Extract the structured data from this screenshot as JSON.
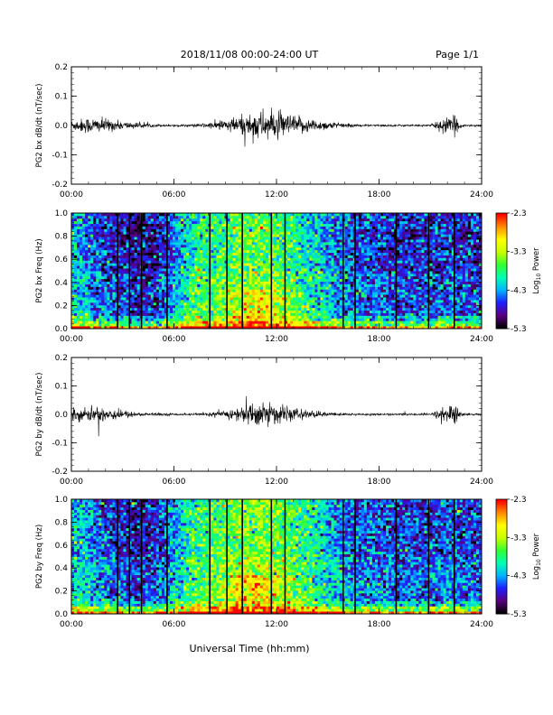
{
  "header": {
    "date_range": "2018/11/08  00:00-24:00 UT",
    "page": "Page 1/1"
  },
  "footer": {
    "xlabel": "Universal Time (hh:mm)"
  },
  "chart_data": [
    {
      "type": "line",
      "title": "",
      "ylabel": "PG2 bx dB/dt (nT/sec)",
      "xlabel": "",
      "xlim": [
        "00:00",
        "24:00"
      ],
      "x_ticks": [
        "00:00",
        "06:00",
        "12:00",
        "18:00",
        "24:00"
      ],
      "ylim": [
        -0.2,
        0.2
      ],
      "y_ticks": [
        "-0.2",
        "-0.1",
        "0.0",
        "0.1",
        "0.2"
      ],
      "grid": false,
      "series": [
        {
          "color": "#000000",
          "amplitude_envelope_hours": [
            0,
            1,
            2,
            3,
            4,
            5,
            6,
            7,
            8,
            9,
            10,
            11,
            12,
            13,
            14,
            15,
            16,
            17,
            18,
            19,
            20,
            21,
            22,
            23,
            24
          ],
          "amplitude_envelope_nT_per_s": [
            0.015,
            0.025,
            0.02,
            0.012,
            0.008,
            0.004,
            0.003,
            0.003,
            0.008,
            0.018,
            0.03,
            0.045,
            0.04,
            0.03,
            0.02,
            0.012,
            0.006,
            0.003,
            0.003,
            0.003,
            0.003,
            0.003,
            0.025,
            0.003,
            0.003
          ]
        }
      ]
    },
    {
      "type": "heatmap",
      "title": "",
      "ylabel": "PG2 bx Freq (Hz)",
      "xlim": [
        "00:00",
        "24:00"
      ],
      "x_ticks": [
        "00:00",
        "06:00",
        "12:00",
        "18:00",
        "24:00"
      ],
      "ylim": [
        0.0,
        1.0
      ],
      "y_ticks": [
        "0.0",
        "0.2",
        "0.4",
        "0.6",
        "0.8",
        "1.0"
      ],
      "colorbar": {
        "label": "Log10 Power",
        "label_main": "Log",
        "label_sub": "10",
        "label_tail": " Power",
        "range": [
          -5.3,
          -2.3
        ],
        "ticks": [
          "-2.3",
          "-3.3",
          "-4.3",
          "-5.3"
        ],
        "colormap": [
          "#000000",
          "#5a007f",
          "#1e1eff",
          "#00b4ff",
          "#00ffb4",
          "#32ff32",
          "#c8ff00",
          "#ffff00",
          "#ff8c00",
          "#ff0000"
        ]
      },
      "data_gap_hours": [
        2.7,
        3.4,
        4.1,
        5.6,
        8.1,
        9.1,
        10.0,
        11.7,
        12.5,
        15.9,
        16.6,
        19.0,
        20.9,
        22.4
      ],
      "time_hours": [
        0,
        1,
        2,
        3,
        4,
        5,
        6,
        7,
        8,
        9,
        10,
        11,
        12,
        13,
        14,
        15,
        16,
        17,
        18,
        19,
        20,
        21,
        22,
        23,
        24
      ],
      "mean_log_power": [
        -4.0,
        -4.3,
        -4.5,
        -4.7,
        -4.8,
        -4.7,
        -4.3,
        -3.8,
        -3.7,
        -3.6,
        -3.5,
        -3.4,
        -3.5,
        -3.7,
        -3.9,
        -4.2,
        -4.4,
        -4.5,
        -4.5,
        -4.6,
        -4.6,
        -4.6,
        -4.5,
        -4.6,
        -4.6
      ]
    },
    {
      "type": "line",
      "title": "",
      "ylabel": "PG2 by dB/dt (nT/sec)",
      "xlabel": "",
      "xlim": [
        "00:00",
        "24:00"
      ],
      "x_ticks": [
        "00:00",
        "06:00",
        "12:00",
        "18:00",
        "24:00"
      ],
      "ylim": [
        -0.2,
        0.2
      ],
      "y_ticks": [
        "-0.2",
        "-0.1",
        "0.0",
        "0.1",
        "0.2"
      ],
      "grid": false,
      "series": [
        {
          "color": "#000000",
          "amplitude_envelope_hours": [
            0,
            1,
            2,
            3,
            4,
            5,
            6,
            7,
            8,
            9,
            10,
            11,
            12,
            13,
            14,
            15,
            16,
            17,
            18,
            19,
            20,
            21,
            22,
            23,
            24
          ],
          "amplitude_envelope_nT_per_s": [
            0.018,
            0.02,
            0.025,
            0.012,
            0.006,
            0.004,
            0.003,
            0.003,
            0.005,
            0.012,
            0.025,
            0.04,
            0.03,
            0.018,
            0.012,
            0.006,
            0.004,
            0.003,
            0.003,
            0.003,
            0.003,
            0.003,
            0.03,
            0.003,
            0.003
          ]
        }
      ]
    },
    {
      "type": "heatmap",
      "title": "",
      "ylabel": "PG2 by Freq (Hz)",
      "xlim": [
        "00:00",
        "24:00"
      ],
      "x_ticks": [
        "00:00",
        "06:00",
        "12:00",
        "18:00",
        "24:00"
      ],
      "ylim": [
        0.0,
        1.0
      ],
      "y_ticks": [
        "0.0",
        "0.2",
        "0.4",
        "0.6",
        "0.8",
        "1.0"
      ],
      "colorbar": {
        "label": "Log10 Power",
        "label_main": "Log",
        "label_sub": "10",
        "label_tail": " Power",
        "range": [
          -5.3,
          -2.3
        ],
        "ticks": [
          "-2.3",
          "-3.3",
          "-4.3",
          "-5.3"
        ],
        "colormap": [
          "#000000",
          "#5a007f",
          "#1e1eff",
          "#00b4ff",
          "#00ffb4",
          "#32ff32",
          "#c8ff00",
          "#ffff00",
          "#ff8c00",
          "#ff0000"
        ]
      },
      "data_gap_hours": [
        2.7,
        3.4,
        4.1,
        5.6,
        8.1,
        9.1,
        10.0,
        11.7,
        12.5,
        15.9,
        16.6,
        19.0,
        20.9,
        22.4
      ],
      "time_hours": [
        0,
        1,
        2,
        3,
        4,
        5,
        6,
        7,
        8,
        9,
        10,
        11,
        12,
        13,
        14,
        15,
        16,
        17,
        18,
        19,
        20,
        21,
        22,
        23,
        24
      ],
      "mean_log_power": [
        -4.0,
        -4.2,
        -4.4,
        -4.6,
        -4.7,
        -4.6,
        -4.2,
        -3.7,
        -3.6,
        -3.5,
        -3.4,
        -3.3,
        -3.4,
        -3.6,
        -3.8,
        -4.1,
        -4.3,
        -4.4,
        -4.4,
        -4.5,
        -4.5,
        -4.5,
        -4.4,
        -4.5,
        -4.5
      ]
    }
  ]
}
